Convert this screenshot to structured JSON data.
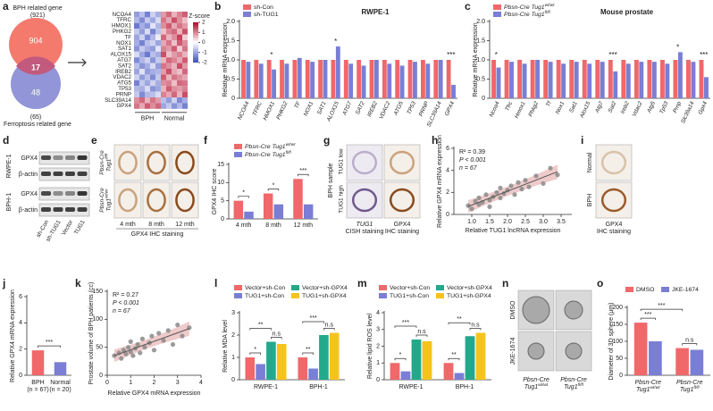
{
  "panel_a": {
    "panel": "a",
    "venn": {
      "top_label": "BPH related gene",
      "top_total": "(921)",
      "top_only": 904,
      "overlap": 17,
      "bottom_only": 48,
      "bottom_total": "(65)",
      "bottom_label": "Ferroptosis related gene"
    },
    "heatmap": {
      "genes": [
        "NCOA4",
        "TFRC",
        "HMOX1",
        "PHKG2",
        "TF",
        "NOX1",
        "SAT1",
        "ALOX15",
        "ATG7",
        "SAT2",
        "IREB2",
        "VDAC2",
        "ATG5",
        "TP53",
        "PRNP",
        "SLC39A14",
        "GPX4"
      ],
      "groups": [
        "BPH",
        "Normal"
      ],
      "legend_title": "Z-score",
      "scale_ticks": [
        2,
        1,
        0,
        -1,
        -2
      ],
      "values": [
        [
          -1.1,
          -0.7,
          -1.4,
          -0.5,
          -0.9,
          0.8,
          1.2,
          0.6,
          1.0,
          1.3
        ],
        [
          -0.8,
          -1.3,
          -0.6,
          -1.0,
          -0.4,
          1.1,
          0.7,
          1.4,
          0.9,
          0.5
        ],
        [
          -1.5,
          -0.9,
          -1.2,
          -0.3,
          -0.8,
          0.9,
          1.3,
          0.7,
          1.1,
          0.8
        ],
        [
          -0.6,
          -1.1,
          -0.4,
          -1.4,
          -0.7,
          0.5,
          1.0,
          1.2,
          0.6,
          1.4
        ],
        [
          -1.0,
          -0.5,
          -1.3,
          -0.8,
          -0.2,
          1.2,
          0.6,
          0.9,
          1.5,
          0.4
        ],
        [
          -0.9,
          -1.4,
          -0.7,
          -0.5,
          -1.0,
          0.7,
          1.1,
          0.5,
          1.3,
          0.9
        ],
        [
          -1.2,
          -0.6,
          -0.9,
          -1.1,
          -0.3,
          1.0,
          0.8,
          1.3,
          0.4,
          1.1
        ],
        [
          -0.4,
          -1.0,
          -1.5,
          -0.7,
          -0.9,
          1.4,
          0.5,
          0.8,
          1.0,
          0.6
        ],
        [
          -1.3,
          -0.8,
          -0.5,
          -1.2,
          -0.6,
          0.6,
          1.2,
          1.0,
          0.7,
          1.3
        ],
        [
          -0.7,
          -1.2,
          -0.9,
          -0.4,
          -1.1,
          1.1,
          0.9,
          0.6,
          1.4,
          0.8
        ],
        [
          -1.0,
          -0.3,
          -1.1,
          -0.9,
          -0.8,
          0.8,
          1.4,
          0.7,
          0.5,
          1.2
        ],
        [
          -0.5,
          -1.1,
          -0.7,
          -1.3,
          -0.6,
          1.3,
          0.6,
          1.1,
          0.9,
          0.7
        ],
        [
          -1.4,
          -0.6,
          -1.0,
          -0.5,
          -0.9,
          0.9,
          1.0,
          0.5,
          1.2,
          1.1
        ],
        [
          -0.8,
          -0.9,
          -0.4,
          -1.2,
          -1.0,
          0.6,
          1.3,
          0.9,
          0.8,
          1.0
        ],
        [
          -0.6,
          -1.3,
          -0.8,
          -0.7,
          -0.4,
          1.0,
          0.7,
          1.2,
          0.6,
          1.4
        ],
        [
          0.9,
          1.2,
          0.6,
          1.1,
          0.8,
          -0.7,
          -1.1,
          -0.5,
          -1.3,
          -0.9
        ],
        [
          1.1,
          0.7,
          1.3,
          0.9,
          1.2,
          -1.0,
          -0.6,
          -1.2,
          -0.8,
          -1.4
        ]
      ]
    }
  },
  "panel_d": {
    "panel": "d",
    "cells": [
      "RWPE-1",
      "BPH-1"
    ],
    "proteins": [
      "GPX4",
      "β-actin"
    ],
    "lanes": [
      "sh-Con",
      "sh-TUG1",
      "Vector",
      "TUG1"
    ]
  },
  "panel_e": {
    "panel": "e",
    "rows": [
      {
        "pre": "Pbsn-Cre",
        "text": "Tug1",
        "sup": "fl/fl"
      },
      {
        "pre": "Pbsn-Cre",
        "text": "Tug1",
        "sup": "wt/wt"
      }
    ],
    "columns": [
      "4 mth",
      "8 mth",
      "12 mth"
    ],
    "caption": "GPX4 IHC staining"
  },
  "panel_g": {
    "panel": "g",
    "side_label": "BPH sample",
    "rows": [
      "TUG1 low",
      "TUG1 high"
    ],
    "captions": [
      [
        "TUG1",
        "CISH staining"
      ],
      [
        "GPX4",
        "IHC staining"
      ]
    ]
  },
  "panel_i": {
    "panel": "i",
    "rows": [
      "Normal",
      "BPH"
    ],
    "caption": [
      "GPX4",
      "IHC staining"
    ]
  },
  "panel_n": {
    "panel": "n",
    "rows": [
      "DMSO",
      "JKE-1674"
    ],
    "columns": [
      {
        "pre": "Pbsn-Cre",
        "text": "Tug1",
        "sup": "wt/wt"
      },
      {
        "pre": "Pbsn-Cre",
        "text": "Tug1",
        "sup": "fl/fl"
      }
    ]
  },
  "chart_data": [
    {
      "type": "bar",
      "panel": "b",
      "title": "RWPE-1",
      "ylabel": "Relative mRNA expression",
      "categories": [
        "NCOA4",
        "TFRC",
        "HMOX1",
        "PHKG2",
        "TF",
        "NOX1",
        "SAT1",
        "ALOX15",
        "ATG7",
        "SAT2",
        "IREB2",
        "VDAC2",
        "ATG5",
        "TP53",
        "PRNP",
        "SLC39A14",
        "GPX4"
      ],
      "series": [
        {
          "name": "sh-Con",
          "color": "#f0686a",
          "values": [
            1,
            1,
            1,
            1,
            1,
            1,
            1,
            1,
            1,
            1,
            1,
            1,
            1,
            1,
            1,
            1,
            1
          ]
        },
        {
          "name": "sh-TUG1",
          "color": "#7a7ed4",
          "values": [
            0.95,
            0.9,
            0.75,
            0.9,
            1.05,
            0.95,
            1.0,
            1.35,
            0.9,
            0.85,
            1.0,
            0.9,
            0.85,
            0.95,
            0.9,
            1.0,
            0.35
          ]
        }
      ],
      "sig": [
        null,
        null,
        "*",
        null,
        null,
        null,
        null,
        "*",
        null,
        null,
        null,
        null,
        null,
        null,
        null,
        null,
        "***"
      ],
      "ylim": [
        0,
        2
      ],
      "yticks": [
        0,
        0.5,
        {
          "value": 1,
          "label": "1.0"
        },
        1.5,
        {
          "value": 2,
          "label": "2.0"
        }
      ]
    },
    {
      "type": "bar",
      "panel": "c",
      "title": "Mouse prostate",
      "ylabel": "Relative mRNA expression",
      "categories": [
        "Ncoa4",
        "Tfrc",
        "Hmox1",
        "Phkg2",
        "Tf",
        "Nox1",
        "Sat1",
        "Alox15",
        "Atg7",
        "Sat2",
        "Ireb2",
        "Vdac2",
        "Atg5",
        "Tp53",
        "Prnp",
        "Slc39a14",
        "Gpx4"
      ],
      "series": [
        {
          "name": {
            "text": "Pbsn-Cre Tug1",
            "sup": "wt/wt"
          },
          "color": "#f0686a",
          "values": [
            1,
            1,
            1,
            1,
            1,
            1,
            1,
            1,
            1,
            1,
            1,
            1,
            1,
            1,
            1,
            1,
            1
          ]
        },
        {
          "name": {
            "text": "Pbsn-Cre Tug1",
            "sup": "fl/fl"
          },
          "color": "#7a7ed4",
          "values": [
            0.8,
            0.95,
            0.9,
            1.0,
            0.95,
            0.9,
            0.95,
            0.9,
            0.95,
            0.7,
            0.9,
            0.95,
            0.95,
            0.9,
            1.2,
            0.95,
            0.55
          ]
        }
      ],
      "sig": [
        "*",
        null,
        null,
        null,
        null,
        null,
        null,
        null,
        null,
        "***",
        null,
        null,
        null,
        null,
        "*",
        null,
        "***"
      ],
      "ylim": [
        0,
        2
      ],
      "yticks": [
        0,
        0.5,
        {
          "value": 1,
          "label": "1.0"
        },
        1.5,
        {
          "value": 2,
          "label": "2.0"
        }
      ]
    },
    {
      "type": "bar",
      "panel": "f",
      "ylabel": "GPX4 IHC score",
      "categories": [
        "4 mth",
        "8 mth",
        "12 mth"
      ],
      "series": [
        {
          "name": {
            "text": "Pbsn-Cre Tug1",
            "sup": "wt/wt"
          },
          "color": "#f0686a",
          "values": [
            5,
            7,
            11
          ]
        },
        {
          "name": {
            "text": "Pbsn-Cre Tug1",
            "sup": "fl/fl"
          },
          "color": "#7a7ed4",
          "values": [
            2,
            4,
            4
          ]
        }
      ],
      "annotations": [
        "*",
        "*",
        "***"
      ],
      "ylim": [
        0,
        15
      ],
      "yticks": [
        0,
        5,
        10,
        15
      ]
    },
    {
      "type": "scatter",
      "panel": "h",
      "xlabel": "Relative TUG1 lncRNA expression",
      "ylabel": "Relative GPX4 mRNA expression",
      "stats": [
        "R² = 0.39",
        "P < 0.001",
        "n = 67"
      ],
      "color": "#8a8a8a",
      "x": [
        0.9,
        1.0,
        1.1,
        1.2,
        1.2,
        1.3,
        1.4,
        1.5,
        1.5,
        1.6,
        1.7,
        1.8,
        1.8,
        1.9,
        2.0,
        2.1,
        2.2,
        2.3,
        2.4,
        2.5,
        2.6,
        2.8,
        3.0,
        3.2,
        3.4
      ],
      "values": [
        0.8,
        0.5,
        1.2,
        0.9,
        1.5,
        1.1,
        1.8,
        1.3,
        0.7,
        1.6,
        2.0,
        1.5,
        2.4,
        1.9,
        2.2,
        2.6,
        1.8,
        2.9,
        2.3,
        3.1,
        2.5,
        3.5,
        2.8,
        4.2,
        3.6
      ],
      "xlim": [
        0.5,
        3.8
      ],
      "xticks": [
        {
          "value": 1,
          "label": "1.0"
        },
        1.5,
        {
          "value": 2,
          "label": "2.0"
        },
        2.5,
        {
          "value": 3,
          "label": "3.0"
        },
        3.5
      ],
      "ylim": [
        0,
        6
      ],
      "yticks": [
        0,
        2,
        4,
        6
      ]
    },
    {
      "type": "bar",
      "panel": "j",
      "ylabel": "Relative GPX4 mRNA expression",
      "categories": [
        "BPH",
        "Normal"
      ],
      "n_labels": [
        "(n = 67)",
        "(n = 20)"
      ],
      "values": [
        1.9,
        1.0
      ],
      "colors": [
        "#f0686a",
        "#7a7ed4"
      ],
      "annotations": [
        "***"
      ],
      "ylim": [
        0,
        6
      ],
      "yticks": [
        0,
        2,
        4,
        6
      ]
    },
    {
      "type": "scatter",
      "panel": "k",
      "xlabel": "Relative GPX4 mRNA expression",
      "ylabel": "Prostate volume of BPH patients (cc)",
      "stats": [
        "R² = 0.27",
        "P < 0.001",
        "n = 67"
      ],
      "color": "#8a8a8a",
      "x": [
        0.3,
        0.5,
        0.6,
        0.7,
        0.8,
        0.9,
        1.0,
        1.0,
        1.1,
        1.2,
        1.3,
        1.4,
        1.5,
        1.6,
        1.8,
        1.9,
        2.0,
        2.2,
        2.4,
        2.6,
        2.8,
        3.0,
        3.2,
        3.5
      ],
      "values": [
        35,
        40,
        30,
        45,
        38,
        50,
        42,
        60,
        35,
        48,
        55,
        40,
        65,
        50,
        58,
        70,
        45,
        75,
        62,
        80,
        55,
        90,
        70,
        85
      ],
      "xlim": [
        0,
        4
      ],
      "xticks": [
        0,
        1,
        2,
        3,
        4
      ],
      "ylim": [
        0,
        150
      ],
      "yticks": [
        0,
        50,
        100,
        150
      ]
    },
    {
      "type": "bar",
      "panel": "l",
      "ylabel": "Relative MDA level",
      "categories": [
        "RWPE-1",
        "BPH-1"
      ],
      "series": [
        {
          "name": "Vector+sh-Con",
          "color": "#f0686a",
          "values": [
            1.0,
            1.0
          ]
        },
        {
          "name": "TUG1+sh-Con",
          "color": "#7a7ed4",
          "values": [
            0.7,
            0.5
          ]
        },
        {
          "name": "Vector+sh-GPX4",
          "color": "#22a98c",
          "values": [
            1.7,
            2.0
          ]
        },
        {
          "name": "TUG1+sh-GPX4",
          "color": "#f6c31b",
          "values": [
            1.6,
            2.1
          ]
        }
      ],
      "annotations": [
        "*",
        "**",
        "n.s",
        "**",
        "***",
        "n.s"
      ],
      "ylim": [
        0,
        3
      ],
      "yticks": [
        0,
        1,
        2,
        3
      ]
    },
    {
      "type": "bar",
      "panel": "m",
      "ylabel": "Relative lipid ROS level",
      "categories": [
        "RWPE-1",
        "BPH-1"
      ],
      "series": [
        {
          "name": "Vector+sh-Con",
          "color": "#f0686a",
          "values": [
            1.0,
            1.0
          ]
        },
        {
          "name": "TUG1+sh-Con",
          "color": "#7a7ed4",
          "values": [
            0.5,
            0.4
          ]
        },
        {
          "name": "Vector+sh-GPX4",
          "color": "#22a98c",
          "values": [
            2.4,
            2.6
          ]
        },
        {
          "name": "TUG1+sh-GPX4",
          "color": "#f6c31b",
          "values": [
            2.3,
            2.8
          ]
        }
      ],
      "annotations": [
        "*",
        "***",
        "n.s",
        "**",
        "**",
        "n.s"
      ],
      "ylim": [
        0,
        4
      ],
      "yticks": [
        0,
        1,
        2,
        3,
        4
      ]
    },
    {
      "type": "bar",
      "panel": "o",
      "ylabel": "Diameter of 3D sphere (μm)",
      "categories": [
        {
          "pre": "Pbsn-Cre",
          "text": "Tug1",
          "sup": "wt/wt"
        },
        {
          "pre": "Pbsn-Cre",
          "text": "Tug1",
          "sup": "fl/fl"
        }
      ],
      "series": [
        {
          "name": "DMSO",
          "color": "#f0686a",
          "values": [
            155,
            80
          ]
        },
        {
          "name": "JKE-1674",
          "color": "#7a7ed4",
          "values": [
            100,
            75
          ]
        }
      ],
      "annotations": [
        "***",
        "***",
        "n.s"
      ],
      "ylim": [
        0,
        200
      ],
      "yticks": [
        0,
        50,
        100,
        150,
        200
      ]
    }
  ]
}
